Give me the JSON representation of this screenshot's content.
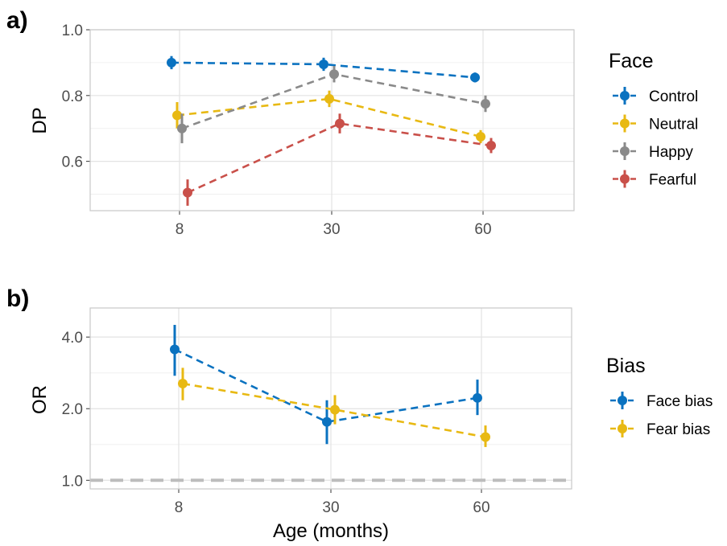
{
  "chart_data": [
    {
      "type": "line",
      "panel_label": "a)",
      "ylabel": "DP",
      "xlabel": "",
      "x": [
        8,
        30,
        60
      ],
      "x_ticks": [
        "8",
        "30",
        "60"
      ],
      "ylim": [
        0.45,
        1.0
      ],
      "y_ticks": [
        "0.6",
        "0.8",
        "1.0"
      ],
      "grid": true,
      "legend_title": "Face",
      "legend_position": "right",
      "series": [
        {
          "name": "Control",
          "color": "#0a72c0",
          "values": [
            0.9,
            0.895,
            0.855
          ],
          "lower": [
            0.88,
            0.875,
            0.84
          ],
          "upper": [
            0.92,
            0.915,
            0.87
          ]
        },
        {
          "name": "Neutral",
          "color": "#e8b913",
          "values": [
            0.74,
            0.79,
            0.675
          ],
          "lower": [
            0.7,
            0.765,
            0.655
          ],
          "upper": [
            0.78,
            0.815,
            0.695
          ]
        },
        {
          "name": "Happy",
          "color": "#8a8a8a",
          "values": [
            0.7,
            0.865,
            0.775
          ],
          "lower": [
            0.655,
            0.84,
            0.75
          ],
          "upper": [
            0.745,
            0.89,
            0.8
          ]
        },
        {
          "name": "Fearful",
          "color": "#c9504a",
          "values": [
            0.505,
            0.715,
            0.648
          ],
          "lower": [
            0.465,
            0.685,
            0.625
          ],
          "upper": [
            0.545,
            0.745,
            0.671
          ]
        }
      ]
    },
    {
      "type": "line",
      "panel_label": "b)",
      "ylabel": "OR",
      "xlabel": "Age (months)",
      "x": [
        8,
        30,
        60
      ],
      "x_ticks": [
        "8",
        "30",
        "60"
      ],
      "y_scale": "log",
      "ylim": [
        0.92,
        5.3
      ],
      "y_ticks": [
        "1.0",
        "2.0",
        "4.0"
      ],
      "reference_line": 1.0,
      "grid": true,
      "legend_title": "Bias",
      "legend_position": "right",
      "series": [
        {
          "name": "Face bias",
          "color": "#0a72c0",
          "values": [
            3.55,
            1.76,
            2.22
          ],
          "lower": [
            2.75,
            1.42,
            1.88
          ],
          "upper": [
            4.5,
            2.17,
            2.65
          ]
        },
        {
          "name": "Fear bias",
          "color": "#e8b913",
          "values": [
            2.55,
            1.98,
            1.52
          ],
          "lower": [
            2.17,
            1.72,
            1.38
          ],
          "upper": [
            2.97,
            2.28,
            1.7
          ]
        }
      ]
    }
  ]
}
